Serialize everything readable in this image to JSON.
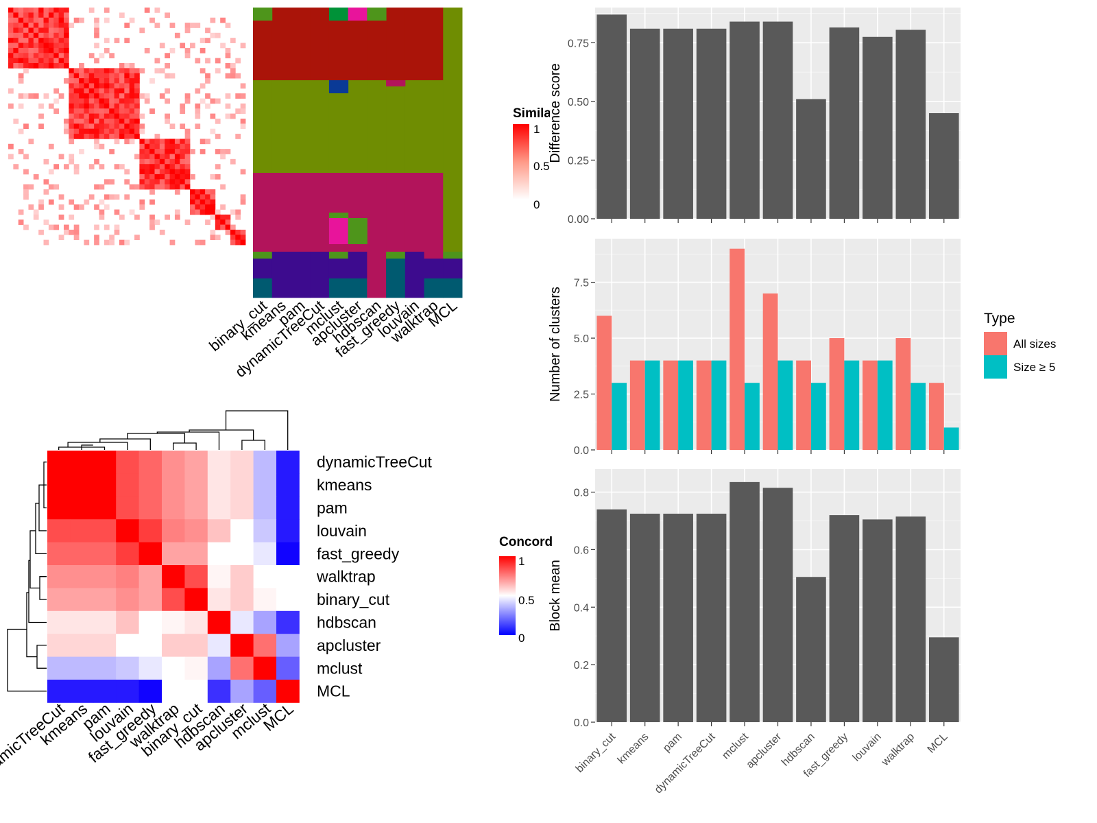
{
  "methods": [
    "binary_cut",
    "kmeans",
    "pam",
    "dynamicTreeCut",
    "mclust",
    "apcluster",
    "hdbscan",
    "fast_greedy",
    "louvain",
    "walktrap",
    "MCL"
  ],
  "similarity_legend": {
    "title": "Similarity",
    "ticks": [
      "1",
      "0.5",
      "0"
    ]
  },
  "concordance_legend": {
    "title": "Concordance",
    "ticks": [
      "1",
      "0.5",
      "0"
    ]
  },
  "cluster_colors": {
    "red": "#AA1409",
    "olive": "#6F8D02",
    "magenta": "#B2145B",
    "purple": "#3D0B8E",
    "teal": "#005A70",
    "green": "#009238",
    "pink": "#E8149B",
    "blue": "#0A3A96",
    "leafgreen": "#4E951B"
  },
  "concordance": {
    "order": [
      "dynamicTreeCut",
      "kmeans",
      "pam",
      "louvain",
      "fast_greedy",
      "walktrap",
      "binary_cut",
      "hdbscan",
      "apcluster",
      "mclust",
      "MCL"
    ],
    "matrix": [
      [
        1,
        1,
        1,
        0.85,
        0.8,
        0.72,
        0.68,
        0.55,
        0.58,
        0.35,
        0.0
      ],
      [
        1,
        1,
        1,
        0.85,
        0.8,
        0.72,
        0.68,
        0.55,
        0.58,
        0.35,
        0.0
      ],
      [
        1,
        1,
        1,
        0.85,
        0.8,
        0.72,
        0.68,
        0.55,
        0.58,
        0.35,
        0.0
      ],
      [
        0.85,
        0.85,
        0.85,
        1,
        0.88,
        0.75,
        0.72,
        0.62,
        0.5,
        0.38,
        0.0
      ],
      [
        0.8,
        0.8,
        0.8,
        0.88,
        1,
        0.68,
        0.68,
        0.5,
        0.5,
        0.45,
        -0.05
      ],
      [
        0.72,
        0.72,
        0.72,
        0.75,
        0.68,
        1,
        0.85,
        0.52,
        0.6,
        0.5,
        0.5
      ],
      [
        0.68,
        0.68,
        0.68,
        0.72,
        0.68,
        0.85,
        1,
        0.55,
        0.6,
        0.52,
        0.5
      ],
      [
        0.55,
        0.55,
        0.55,
        0.62,
        0.5,
        0.52,
        0.55,
        1,
        0.45,
        0.3,
        0.05
      ],
      [
        0.58,
        0.58,
        0.58,
        0.5,
        0.5,
        0.6,
        0.6,
        0.45,
        1,
        0.78,
        0.3
      ],
      [
        0.35,
        0.35,
        0.35,
        0.38,
        0.45,
        0.5,
        0.52,
        0.3,
        0.78,
        1,
        0.15
      ],
      [
        0.0,
        0.0,
        0.0,
        0.0,
        -0.05,
        0.5,
        0.5,
        0.05,
        0.3,
        0.15,
        1
      ]
    ]
  },
  "chart_data": [
    {
      "type": "bar",
      "categories": [
        "binary_cut",
        "kmeans",
        "pam",
        "dynamicTreeCut",
        "mclust",
        "apcluster",
        "hdbscan",
        "fast_greedy",
        "louvain",
        "walktrap",
        "MCL"
      ],
      "values": [
        0.87,
        0.81,
        0.81,
        0.81,
        0.84,
        0.84,
        0.51,
        0.815,
        0.775,
        0.805,
        0.45
      ],
      "ylabel": "Difference score",
      "yticks": [
        "0.00",
        "0.25",
        "0.50",
        "0.75"
      ],
      "ylim": [
        0,
        0.9
      ],
      "grid": true,
      "bar_color": "#595959"
    },
    {
      "type": "bar",
      "categories": [
        "binary_cut",
        "kmeans",
        "pam",
        "dynamicTreeCut",
        "mclust",
        "apcluster",
        "hdbscan",
        "fast_greedy",
        "louvain",
        "walktrap",
        "MCL"
      ],
      "series": [
        {
          "name": "All sizes",
          "color": "#F8766D",
          "values": [
            6,
            4,
            4,
            4,
            9,
            7,
            4,
            5,
            4,
            5,
            3
          ]
        },
        {
          "name": "Size ≥ 5",
          "color": "#00BFC4",
          "values": [
            3,
            4,
            4,
            4,
            3,
            4,
            3,
            4,
            4,
            3,
            1
          ]
        }
      ],
      "ylabel": "Number of clusters",
      "yticks": [
        "0.0",
        "2.5",
        "5.0",
        "7.5"
      ],
      "ylim": [
        0,
        9.45
      ],
      "legend_title": "Type",
      "legend_position": "right",
      "grid": true
    },
    {
      "type": "bar",
      "categories": [
        "binary_cut",
        "kmeans",
        "pam",
        "dynamicTreeCut",
        "mclust",
        "apcluster",
        "hdbscan",
        "fast_greedy",
        "louvain",
        "walktrap",
        "MCL"
      ],
      "values": [
        0.74,
        0.725,
        0.725,
        0.725,
        0.835,
        0.815,
        0.505,
        0.72,
        0.705,
        0.715,
        0.295
      ],
      "ylabel": "Block mean",
      "yticks": [
        "0.0",
        "0.2",
        "0.4",
        "0.6",
        "0.8"
      ],
      "ylim": [
        0,
        0.88
      ],
      "grid": true,
      "bar_color": "#595959"
    }
  ]
}
